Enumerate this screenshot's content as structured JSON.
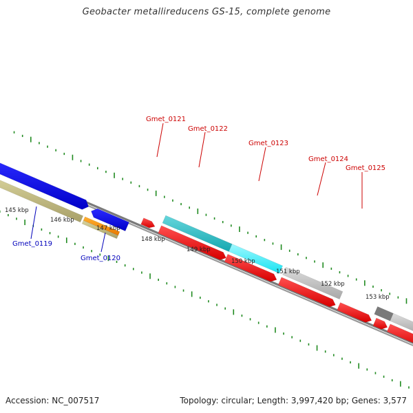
{
  "title": "Geobacter metallireducens GS-15, complete genome",
  "footer": {
    "accession": "Accession: NC_007517",
    "summary": "Topology: circular; Length: 3,997,420 bp; Genes: 3,577"
  },
  "colors": {
    "backbone": "#7a7a7a",
    "tick": "#1f8a1f",
    "cds_red": "#ee0000",
    "label_red": "#cc0000",
    "label_blue": "#0000bb"
  },
  "ruler_labels": [
    "145 kbp",
    "146 kbp",
    "147 kbp",
    "148 kbp",
    "149 kbp",
    "150 kbp",
    "151 kbp",
    "152 kbp",
    "153 kbp"
  ],
  "gene_labels": [
    {
      "text": "Gmet_0119",
      "color": "blue"
    },
    {
      "text": "Gmet_0120",
      "color": "blue"
    },
    {
      "text": "Gmet_0121",
      "color": "red"
    },
    {
      "text": "Gmet_0122",
      "color": "red"
    },
    {
      "text": "Gmet_0123",
      "color": "red"
    },
    {
      "text": "Gmet_0124",
      "color": "red"
    },
    {
      "text": "Gmet_0125",
      "color": "red"
    }
  ]
}
